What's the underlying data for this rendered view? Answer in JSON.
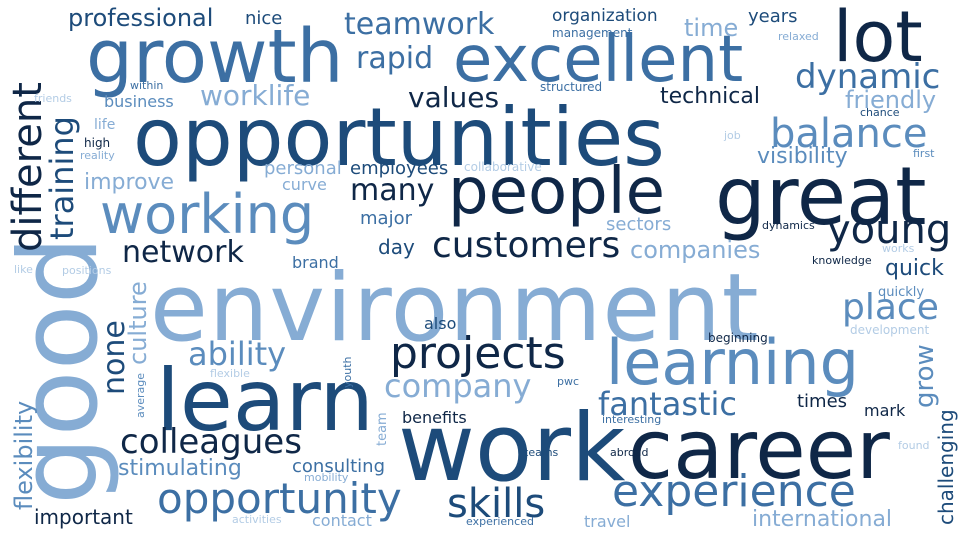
{
  "colors": {
    "navy": "#0f2747",
    "dark": "#1d4b7a",
    "mid": "#3c6fa3",
    "steel": "#5b8cbd",
    "light": "#86acd4",
    "pale": "#b3cce5"
  },
  "words": [
    {
      "text": "environment",
      "color": "light"
    },
    {
      "text": "opportunities",
      "color": "dark"
    },
    {
      "text": "work",
      "color": "dark"
    },
    {
      "text": "good",
      "color": "light"
    },
    {
      "text": "career",
      "color": "navy"
    },
    {
      "text": "great",
      "color": "navy"
    },
    {
      "text": "people",
      "color": "navy"
    },
    {
      "text": "growth",
      "color": "mid"
    },
    {
      "text": "excellent",
      "color": "mid"
    },
    {
      "text": "lot",
      "color": "navy"
    },
    {
      "text": "learn",
      "color": "dark"
    },
    {
      "text": "learning",
      "color": "steel"
    },
    {
      "text": "working",
      "color": "steel"
    },
    {
      "text": "experience",
      "color": "mid"
    },
    {
      "text": "opportunity",
      "color": "mid"
    },
    {
      "text": "projects",
      "color": "navy"
    },
    {
      "text": "skills",
      "color": "dark"
    },
    {
      "text": "colleagues",
      "color": "navy"
    },
    {
      "text": "customers",
      "color": "navy"
    },
    {
      "text": "different",
      "color": "navy"
    },
    {
      "text": "balance",
      "color": "steel"
    },
    {
      "text": "young",
      "color": "navy"
    },
    {
      "text": "dynamic",
      "color": "mid"
    },
    {
      "text": "teamwork",
      "color": "mid"
    },
    {
      "text": "fantastic",
      "color": "mid"
    },
    {
      "text": "company",
      "color": "light"
    },
    {
      "text": "ability",
      "color": "steel"
    },
    {
      "text": "network",
      "color": "navy"
    },
    {
      "text": "training",
      "color": "dark"
    },
    {
      "text": "place",
      "color": "steel"
    },
    {
      "text": "many",
      "color": "navy"
    },
    {
      "text": "rapid",
      "color": "mid"
    },
    {
      "text": "worklife",
      "color": "light"
    },
    {
      "text": "values",
      "color": "navy"
    },
    {
      "text": "professional",
      "color": "dark"
    },
    {
      "text": "none",
      "color": "dark"
    },
    {
      "text": "flexibility",
      "color": "steel"
    },
    {
      "text": "grow",
      "color": "steel"
    },
    {
      "text": "stimulating",
      "color": "steel"
    },
    {
      "text": "companies",
      "color": "light"
    },
    {
      "text": "friendly",
      "color": "light"
    },
    {
      "text": "visibility",
      "color": "steel"
    },
    {
      "text": "international",
      "color": "light"
    },
    {
      "text": "culture",
      "color": "light"
    },
    {
      "text": "quick",
      "color": "dark"
    },
    {
      "text": "technical",
      "color": "navy"
    },
    {
      "text": "time",
      "color": "light"
    },
    {
      "text": "improve",
      "color": "light"
    },
    {
      "text": "consulting",
      "color": "mid"
    },
    {
      "text": "challenging",
      "color": "dark"
    },
    {
      "text": "important",
      "color": "navy"
    },
    {
      "text": "employees",
      "color": "dark"
    },
    {
      "text": "personal",
      "color": "light"
    },
    {
      "text": "business",
      "color": "steel"
    },
    {
      "text": "organization",
      "color": "dark"
    },
    {
      "text": "nice",
      "color": "dark"
    },
    {
      "text": "years",
      "color": "dark"
    },
    {
      "text": "day",
      "color": "dark"
    },
    {
      "text": "major",
      "color": "mid"
    },
    {
      "text": "brand",
      "color": "mid"
    },
    {
      "text": "sectors",
      "color": "light"
    },
    {
      "text": "also",
      "color": "dark"
    },
    {
      "text": "benefits",
      "color": "navy"
    },
    {
      "text": "times",
      "color": "navy"
    },
    {
      "text": "mark",
      "color": "navy"
    },
    {
      "text": "travel",
      "color": "light"
    },
    {
      "text": "contact",
      "color": "light"
    },
    {
      "text": "curve",
      "color": "light"
    },
    {
      "text": "management",
      "color": "mid"
    },
    {
      "text": "structured",
      "color": "mid"
    },
    {
      "text": "relaxed",
      "color": "light"
    },
    {
      "text": "friends",
      "color": "pale"
    },
    {
      "text": "within",
      "color": "mid"
    },
    {
      "text": "life",
      "color": "light"
    },
    {
      "text": "high",
      "color": "navy"
    },
    {
      "text": "reality",
      "color": "light"
    },
    {
      "text": "collaborative",
      "color": "pale"
    },
    {
      "text": "job",
      "color": "pale"
    },
    {
      "text": "chance",
      "color": "dark"
    },
    {
      "text": "first",
      "color": "steel"
    },
    {
      "text": "dynamics",
      "color": "navy"
    },
    {
      "text": "works",
      "color": "pale"
    },
    {
      "text": "knowledge",
      "color": "navy"
    },
    {
      "text": "quickly",
      "color": "steel"
    },
    {
      "text": "development",
      "color": "pale"
    },
    {
      "text": "beginning",
      "color": "navy"
    },
    {
      "text": "like",
      "color": "pale"
    },
    {
      "text": "positions",
      "color": "pale"
    },
    {
      "text": "flexible",
      "color": "pale"
    },
    {
      "text": "youth",
      "color": "mid"
    },
    {
      "text": "average",
      "color": "steel"
    },
    {
      "text": "pwc",
      "color": "mid"
    },
    {
      "text": "team",
      "color": "light"
    },
    {
      "text": "mobility",
      "color": "light"
    },
    {
      "text": "teams",
      "color": "dark"
    },
    {
      "text": "interesting",
      "color": "mid"
    },
    {
      "text": "abroad",
      "color": "navy"
    },
    {
      "text": "found",
      "color": "pale"
    },
    {
      "text": "experienced",
      "color": "mid"
    },
    {
      "text": "activities",
      "color": "pale"
    }
  ]
}
